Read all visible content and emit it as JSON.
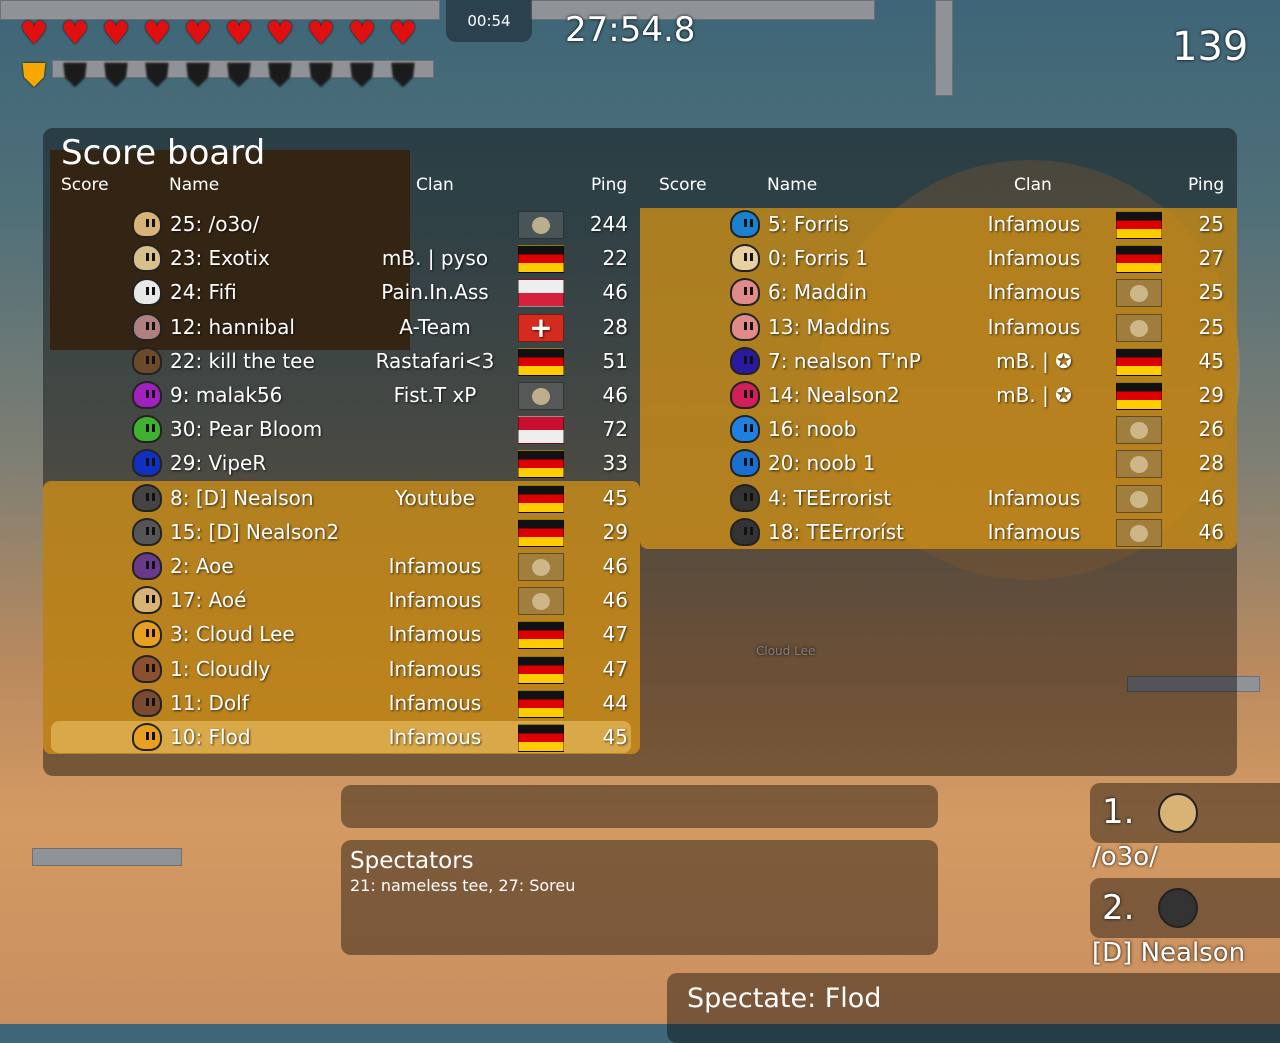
{
  "hud": {
    "hearts": 10,
    "armor": 1,
    "armor_max": 10,
    "round_timer": "00:54",
    "race_time": "27:54.8",
    "fps": "139"
  },
  "scoreboard": {
    "title": "Score board",
    "headers": {
      "score": "Score",
      "name": "Name",
      "clan": "Clan",
      "ping": "Ping"
    },
    "left": [
      {
        "name": "25: /o3o/",
        "clan": "",
        "flag": "default",
        "ping": "244",
        "tee": "#d9b275",
        "team": false
      },
      {
        "name": "23: Exotix",
        "clan": "mB. | pyso",
        "flag": "de",
        "ping": "22",
        "tee": "#d8c08a",
        "team": false
      },
      {
        "name": "24: Fifi",
        "clan": "Pain.In.Ass",
        "flag": "pl",
        "ping": "46",
        "tee": "#e8e8e8",
        "team": false
      },
      {
        "name": "12: hannibal",
        "clan": "A-Team",
        "flag": "ch",
        "ping": "28",
        "tee": "#b08080",
        "team": false
      },
      {
        "name": "22: kill the tee",
        "clan": "Rastafari<3",
        "flag": "de",
        "ping": "51",
        "tee": "#6a4a2a",
        "team": false
      },
      {
        "name": "9: malak56",
        "clan": "Fist.T xP",
        "flag": "default",
        "ping": "46",
        "tee": "#a020c0",
        "team": false
      },
      {
        "name": "30: Pear Bloom",
        "clan": "",
        "flag": "id",
        "ping": "72",
        "tee": "#40b030",
        "team": false
      },
      {
        "name": "29: VipeR",
        "clan": "",
        "flag": "de",
        "ping": "33",
        "tee": "#1030c0",
        "team": false
      },
      {
        "name": "8: [D] Nealson",
        "clan": "Youtube",
        "flag": "de",
        "ping": "45",
        "tee": "#444",
        "team": true
      },
      {
        "name": "15: [D] Nealson2",
        "clan": "",
        "flag": "de",
        "ping": "29",
        "tee": "#555",
        "team": true
      },
      {
        "name": "2: Aoe",
        "clan": "Infamous",
        "flag": "default",
        "ping": "46",
        "tee": "#6a3a8a",
        "team": true
      },
      {
        "name": "17: Aoé",
        "clan": "Infamous",
        "flag": "default",
        "ping": "46",
        "tee": "#d9b275",
        "team": true
      },
      {
        "name": "3: Cloud Lee",
        "clan": "Infamous",
        "flag": "de",
        "ping": "47",
        "tee": "#e8a020",
        "team": true
      },
      {
        "name": "1: Cloudly",
        "clan": "Infamous",
        "flag": "de",
        "ping": "47",
        "tee": "#8a5030",
        "team": true
      },
      {
        "name": "11: Dolf",
        "clan": "Infamous",
        "flag": "de",
        "ping": "44",
        "tee": "#7a4a30",
        "team": true
      },
      {
        "name": "10: Flod",
        "clan": "Infamous",
        "flag": "de",
        "ping": "45",
        "tee": "#e8a020",
        "team": true,
        "self": true
      }
    ],
    "right": [
      {
        "name": "5: Forris",
        "clan": "Infamous",
        "flag": "de",
        "ping": "25",
        "tee": "#1a80d0"
      },
      {
        "name": "0: Forris 1",
        "clan": "Infamous",
        "flag": "de",
        "ping": "27",
        "tee": "#e8d0a0"
      },
      {
        "name": "6: Maddin",
        "clan": "Infamous",
        "flag": "default",
        "ping": "25",
        "tee": "#e08a8a"
      },
      {
        "name": "13: Maddins",
        "clan": "Infamous",
        "flag": "default",
        "ping": "25",
        "tee": "#e08a8a"
      },
      {
        "name": "7: nealson T'nP",
        "clan": "mB. | ✪",
        "flag": "de",
        "ping": "45",
        "tee": "#2a1aa0"
      },
      {
        "name": "14: Nealson2",
        "clan": "mB. | ✪",
        "flag": "de",
        "ping": "29",
        "tee": "#d0205a"
      },
      {
        "name": "16: noob",
        "clan": "",
        "flag": "default",
        "ping": "26",
        "tee": "#2080e0"
      },
      {
        "name": "20: noob 1",
        "clan": "",
        "flag": "default",
        "ping": "28",
        "tee": "#1a70d0"
      },
      {
        "name": "4: TEErrorist",
        "clan": "Infamous",
        "flag": "default",
        "ping": "46",
        "tee": "#333"
      },
      {
        "name": "18: TEErroríst",
        "clan": "Infamous",
        "flag": "default",
        "ping": "46",
        "tee": "#333"
      }
    ]
  },
  "spectators": {
    "title": "Spectators",
    "list": "21: nameless tee, 27: Soreu"
  },
  "ranking": [
    {
      "rank": "1.",
      "name": "/o3o/",
      "tee": "#d9b275"
    },
    {
      "rank": "2.",
      "name": "[D] Nealson",
      "tee": "#333"
    }
  ],
  "spectate_label": "Spectate: Flod",
  "world_labels": {
    "cloud_lee": "Cloud Lee"
  }
}
